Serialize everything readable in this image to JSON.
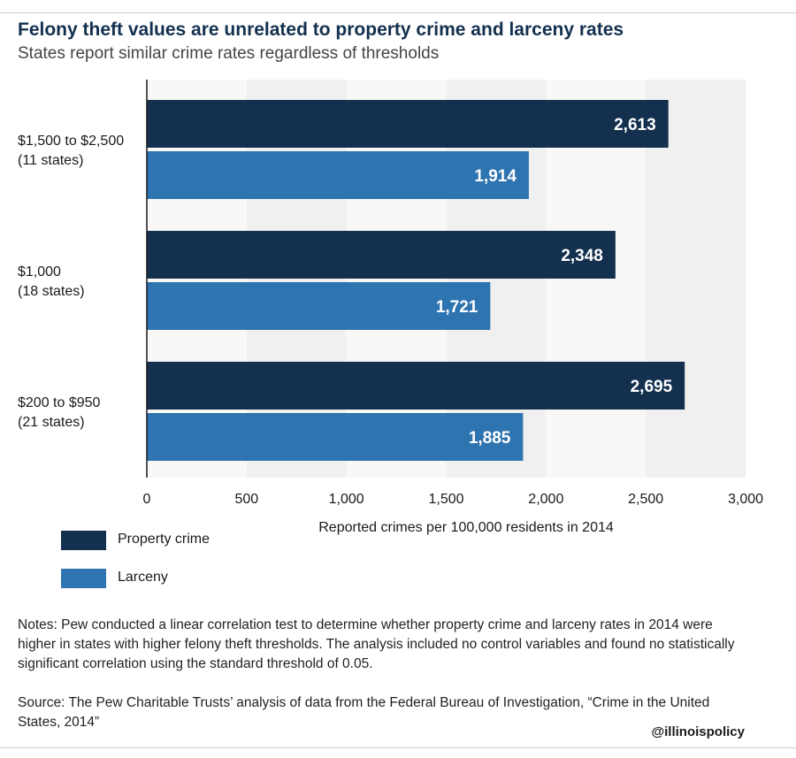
{
  "title": "Felony theft values are unrelated to property crime and larceny rates",
  "subtitle": "States report similar crime rates regardless of thresholds",
  "colors": {
    "property_crime": "#13304f",
    "larceny": "#2e74b0",
    "band_light": "#faf8f7",
    "band_dark": "#f0f0f0",
    "bar_label": "#ffffff"
  },
  "chart_data": {
    "type": "bar",
    "orientation": "horizontal",
    "categories": [
      {
        "label_line1": "$1,500 to $2,500",
        "label_line2": "(11 states)"
      },
      {
        "label_line1": "$1,000",
        "label_line2": "(18 states)"
      },
      {
        "label_line1": "$200 to $950",
        "label_line2": "(21 states)"
      }
    ],
    "series": [
      {
        "name": "Property crime",
        "values": [
          2613,
          2348,
          2695
        ],
        "labels": [
          "2,613",
          "2,348",
          "2,695"
        ]
      },
      {
        "name": "Larceny",
        "values": [
          1914,
          1721,
          1885
        ],
        "labels": [
          "1,914",
          "1,721",
          "1,885"
        ]
      }
    ],
    "xlim": [
      0,
      3000
    ],
    "xticks": [
      0,
      500,
      1000,
      1500,
      2000,
      2500,
      3000
    ],
    "xtick_labels": [
      "0",
      "500",
      "1,000",
      "1,500",
      "2,000",
      "2,500",
      "3,000"
    ],
    "xlabel": "Reported crimes per 100,000 residents in 2014",
    "ylabel": "",
    "grid": "alternating vertical bands",
    "legend_position": "bottom-left"
  },
  "notes": "Notes: Pew conducted a linear correlation test to determine whether property crime and larceny rates in 2014 were higher in states with higher felony theft thresholds. The analysis included no control variables and found no statistically significant correlation using the standard threshold of 0.05.",
  "source": "Source: The Pew Charitable Trusts’ analysis of data from the Federal Bureau of Investigation, “Crime in the United States, 2014”",
  "handle": "@illinoispolicy"
}
